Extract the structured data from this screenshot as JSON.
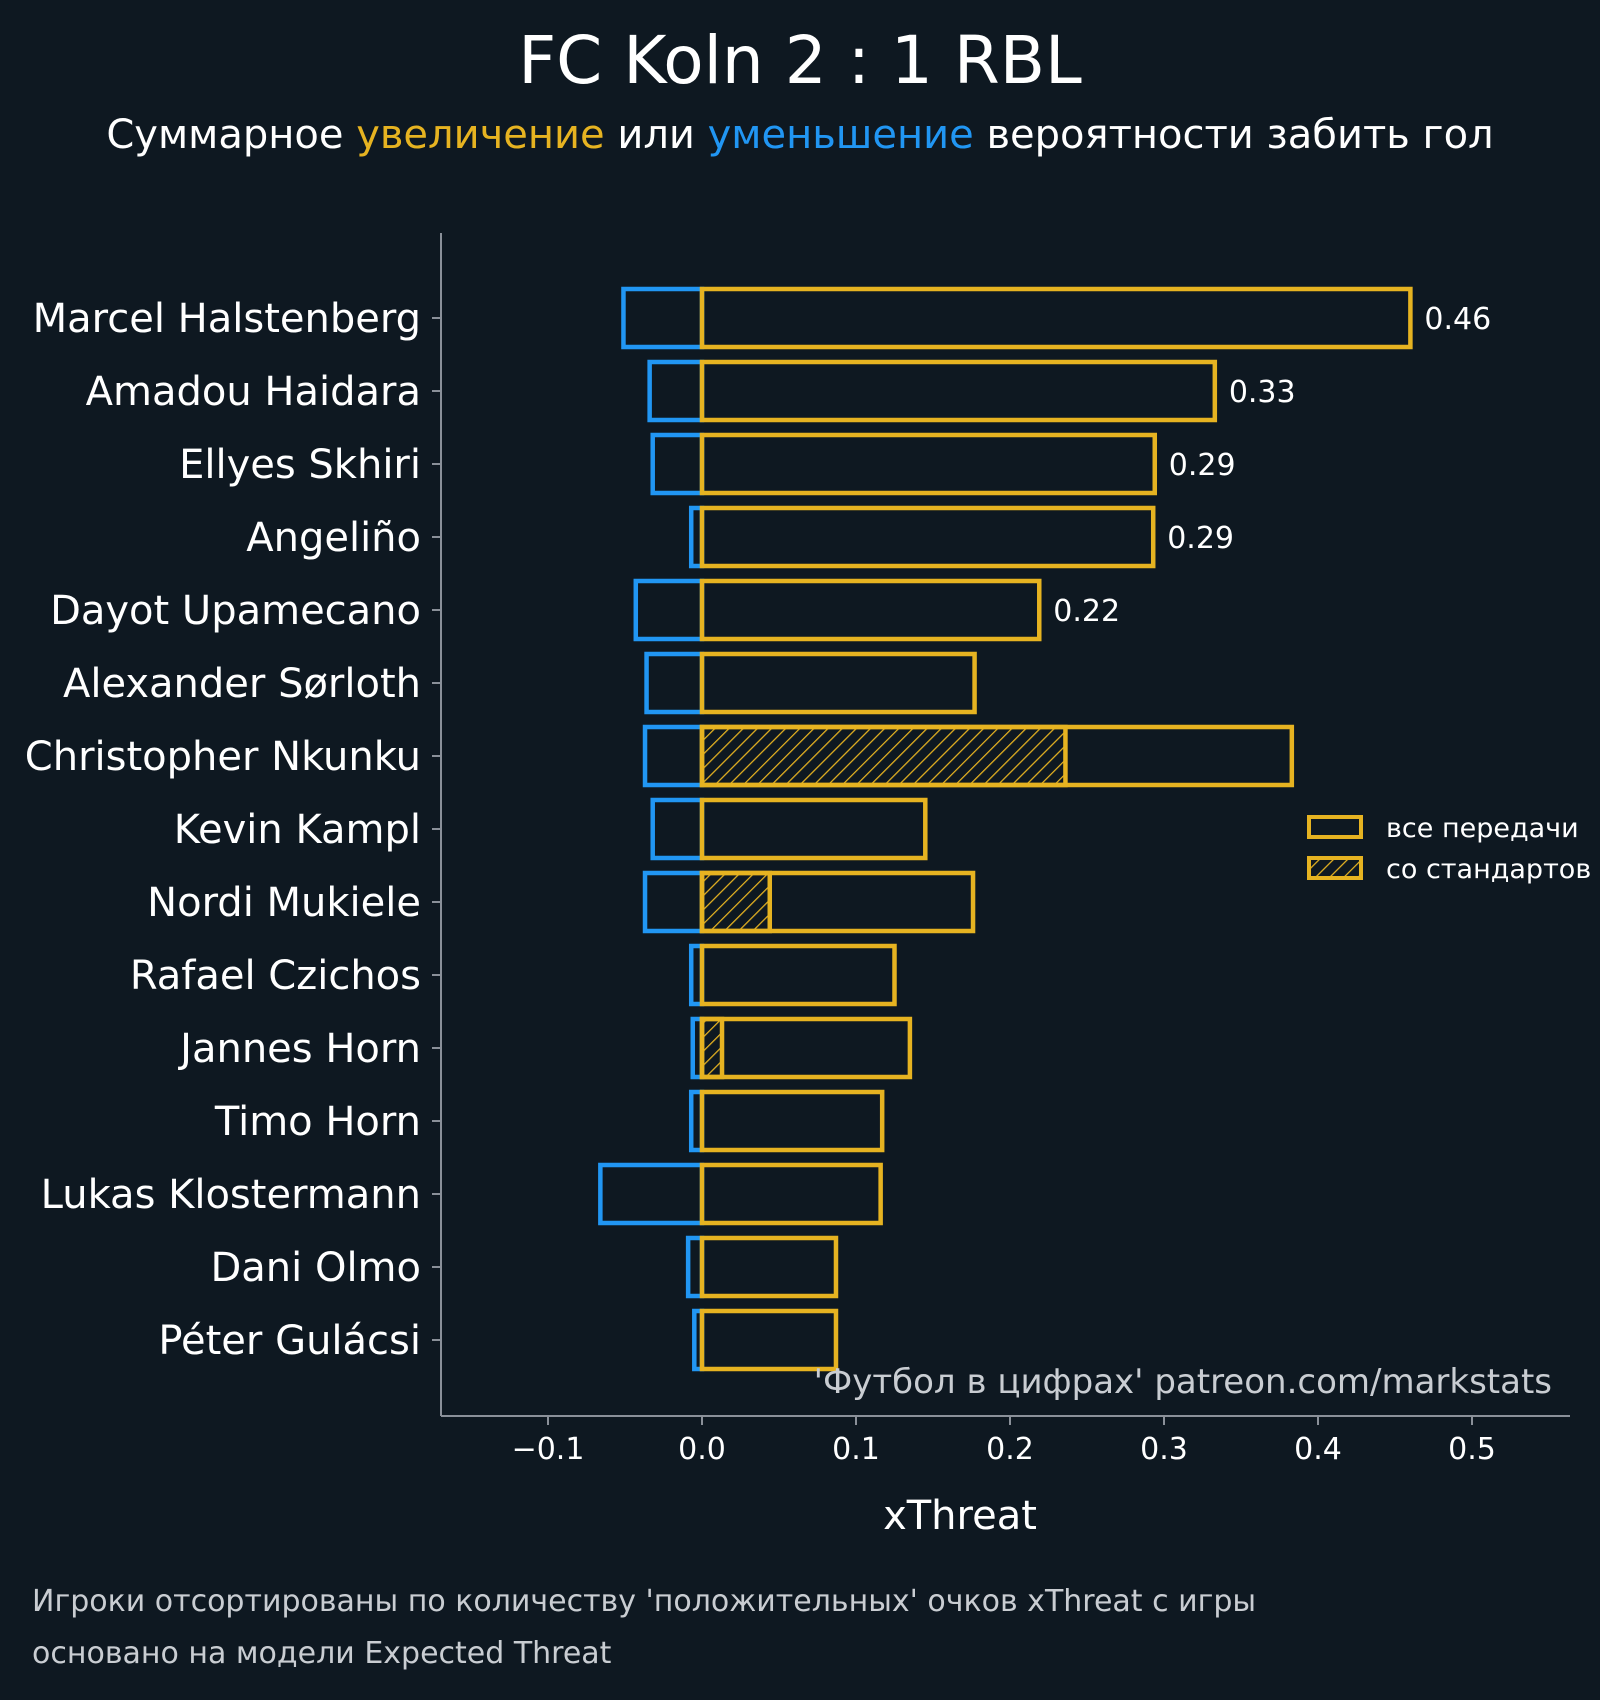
{
  "header": {
    "title": "FC Koln 2 : 1 RBL",
    "subtitle_prefix": "Суммарное ",
    "subtitle_increase": "увеличение",
    "subtitle_middle": " или ",
    "subtitle_decrease": "уменьшение",
    "subtitle_suffix": " вероятности забить гол"
  },
  "colors": {
    "background": "#0e1821",
    "positive": "#e6b321",
    "negative": "#2196f3",
    "axis": "#8a9099",
    "text": "#ffffff",
    "muted_text": "#c9cdd2"
  },
  "chart_data": {
    "type": "bar",
    "orientation": "horizontal",
    "xlabel": "xThreat",
    "xlim": [
      -0.17,
      0.56
    ],
    "xticks": [
      -0.1,
      0.0,
      0.1,
      0.2,
      0.3,
      0.4,
      0.5
    ],
    "xtick_labels": [
      "−0.1",
      "0.0",
      "0.1",
      "0.2",
      "0.3",
      "0.4",
      "0.5"
    ],
    "legend": {
      "position": "right",
      "entries": [
        {
          "label": "все передачи",
          "style": "outline"
        },
        {
          "label": "со стандартов",
          "style": "hatched"
        }
      ]
    },
    "watermark": "'Футбол в цифрах' patreon.com/markstats",
    "players": [
      {
        "name": "Marcel Halstenberg",
        "positive": 0.46,
        "negative": -0.051,
        "set_piece": 0,
        "label": "0.46"
      },
      {
        "name": "Amadou Haidara",
        "positive": 0.333,
        "negative": -0.034,
        "set_piece": 0,
        "label": "0.33"
      },
      {
        "name": "Ellyes Skhiri",
        "positive": 0.294,
        "negative": -0.032,
        "set_piece": 0,
        "label": "0.29"
      },
      {
        "name": "Angeliño",
        "positive": 0.293,
        "negative": -0.007,
        "set_piece": 0,
        "label": "0.29"
      },
      {
        "name": "Dayot Upamecano",
        "positive": 0.219,
        "negative": -0.043,
        "set_piece": 0,
        "label": "0.22"
      },
      {
        "name": "Alexander Sørloth",
        "positive": 0.177,
        "negative": -0.036,
        "set_piece": 0,
        "label": ""
      },
      {
        "name": "Christopher Nkunku",
        "positive": 0.383,
        "negative": -0.037,
        "set_piece": 0.236,
        "label": ""
      },
      {
        "name": "Kevin Kampl",
        "positive": 0.145,
        "negative": -0.032,
        "set_piece": 0,
        "label": ""
      },
      {
        "name": "Nordi Mukiele",
        "positive": 0.176,
        "negative": -0.037,
        "set_piece": 0.044,
        "label": ""
      },
      {
        "name": "Rafael Czichos",
        "positive": 0.125,
        "negative": -0.007,
        "set_piece": 0,
        "label": ""
      },
      {
        "name": "Jannes Horn",
        "positive": 0.135,
        "negative": -0.006,
        "set_piece": 0.013,
        "label": ""
      },
      {
        "name": "Timo Horn",
        "positive": 0.117,
        "negative": -0.007,
        "set_piece": 0,
        "label": ""
      },
      {
        "name": "Lukas Klostermann",
        "positive": 0.116,
        "negative": -0.066,
        "set_piece": 0,
        "label": ""
      },
      {
        "name": "Dani Olmo",
        "positive": 0.087,
        "negative": -0.009,
        "set_piece": 0,
        "label": ""
      },
      {
        "name": "Péter Gulácsi",
        "positive": 0.087,
        "negative": -0.005,
        "set_piece": 0,
        "label": ""
      }
    ]
  },
  "footer": {
    "line1": "Игроки отсортированы по количеству 'положительных' очков xThreat с игры",
    "line2": "основано на модели Expected Threat"
  }
}
